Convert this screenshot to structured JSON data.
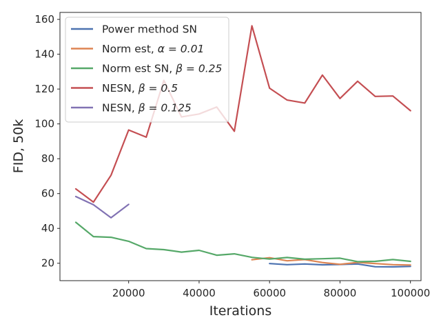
{
  "chart_data": {
    "type": "line",
    "xlabel": "Iterations",
    "ylabel": "FID, 50k",
    "xlim": [
      500,
      103000
    ],
    "ylim": [
      10,
      164
    ],
    "xticks": [
      20000,
      40000,
      60000,
      80000,
      100000
    ],
    "xtick_labels": [
      "20000",
      "40000",
      "60000",
      "80000",
      "100000"
    ],
    "yticks": [
      20,
      40,
      60,
      80,
      100,
      120,
      140,
      160
    ],
    "ytick_labels": [
      "20",
      "40",
      "60",
      "80",
      "100",
      "120",
      "140",
      "160"
    ],
    "grid": false,
    "legend_position": "top-left",
    "series": [
      {
        "name": "Power method SN",
        "color": "#4c72b0",
        "x": [
          60000,
          65000,
          70000,
          75000,
          80000,
          85000,
          90000,
          95000,
          100000
        ],
        "y": [
          19.8,
          19.2,
          19.6,
          19.1,
          19.3,
          19.6,
          18.0,
          17.9,
          18.2
        ]
      },
      {
        "name": "Norm est, ",
        "math": "α = 0.01",
        "color": "#dd8452",
        "x": [
          55000,
          60000,
          65000,
          70000,
          75000,
          80000,
          85000,
          90000,
          95000,
          100000
        ],
        "y": [
          22.0,
          23.2,
          21.4,
          22.1,
          20.4,
          19.4,
          20.5,
          19.8,
          19.2,
          19.0
        ]
      },
      {
        "name": "Norm est SN, ",
        "math": "β = 0.25",
        "color": "#55a868",
        "x": [
          5000,
          10000,
          15000,
          20000,
          25000,
          30000,
          35000,
          40000,
          45000,
          50000,
          55000,
          60000,
          65000,
          70000,
          75000,
          80000,
          85000,
          90000,
          95000,
          100000
        ],
        "y": [
          43.5,
          35.3,
          34.9,
          32.6,
          28.4,
          27.8,
          26.4,
          27.4,
          24.6,
          25.4,
          23.4,
          22.4,
          23.3,
          22.3,
          22.6,
          22.9,
          20.9,
          21.1,
          22.1,
          21.1
        ]
      },
      {
        "name": "NESN, ",
        "math": "β = 0.5",
        "color": "#c44e52",
        "x": [
          5000,
          10000,
          15000,
          20000,
          25000,
          30000,
          35000,
          40000,
          45000,
          50000,
          55000,
          60000,
          65000,
          70000,
          75000,
          80000,
          85000,
          90000,
          95000,
          100000
        ],
        "y": [
          62.7,
          55.1,
          70.5,
          96.5,
          92.4,
          125.0,
          104.0,
          105.7,
          109.7,
          95.8,
          156.3,
          120.5,
          113.7,
          112.0,
          128.0,
          114.6,
          124.5,
          115.8,
          116.0,
          107.6
        ]
      },
      {
        "name": "NESN, ",
        "math": "β = 0.125",
        "color": "#8172b3",
        "x": [
          5000,
          10000,
          15000,
          20000
        ],
        "y": [
          58.3,
          53.6,
          46.1,
          53.8
        ]
      }
    ]
  }
}
